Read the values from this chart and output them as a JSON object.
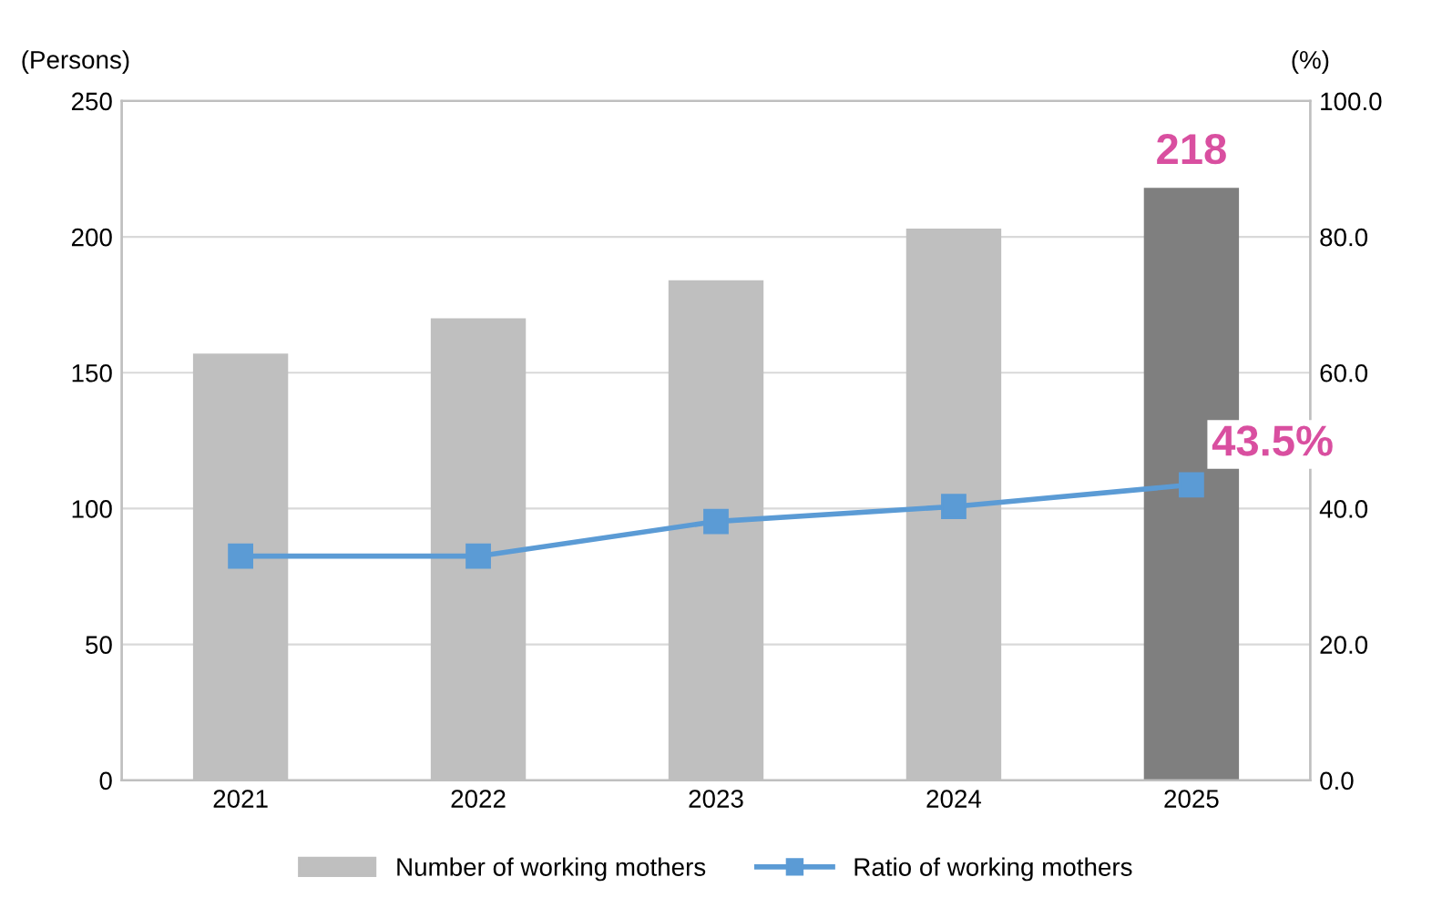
{
  "chart_data": {
    "type": "bar",
    "categories": [
      "2021",
      "2022",
      "2023",
      "2024",
      "2025"
    ],
    "ylabel": "(Persons)",
    "y2label": "(%)",
    "ylim": [
      0,
      250
    ],
    "yticks": [
      0,
      50,
      100,
      150,
      200,
      250
    ],
    "y2lim": [
      0,
      100
    ],
    "y2ticks": [
      {
        "value": 0,
        "label": "0.0"
      },
      {
        "value": 20,
        "label": "20.0"
      },
      {
        "value": 40,
        "label": "40.0"
      },
      {
        "value": 60,
        "label": "60.0"
      },
      {
        "value": 80,
        "label": "80.0"
      },
      {
        "value": 100,
        "label": "100.0"
      }
    ],
    "grid": "y",
    "legend": "bottom",
    "series": [
      {
        "name": "Number of working mothers",
        "values": [
          157,
          170,
          184,
          203,
          218
        ],
        "colors": [
          "#bfbfbf",
          "#bfbfbf",
          "#bfbfbf",
          "#bfbfbf",
          "#7f7f7f"
        ],
        "color": "#bfbfbf",
        "value_labels": [
          null,
          null,
          null,
          null,
          "218"
        ]
      },
      {
        "name": "Ratio of working mothers",
        "type": "line",
        "axis": "y2",
        "color": "#5b9bd5",
        "marker": "square",
        "line_style": "solid",
        "values": [
          33.0,
          33.0,
          38.1,
          40.3,
          43.5
        ],
        "value_labels": [
          null,
          null,
          null,
          null,
          "43.5%"
        ]
      }
    ]
  }
}
